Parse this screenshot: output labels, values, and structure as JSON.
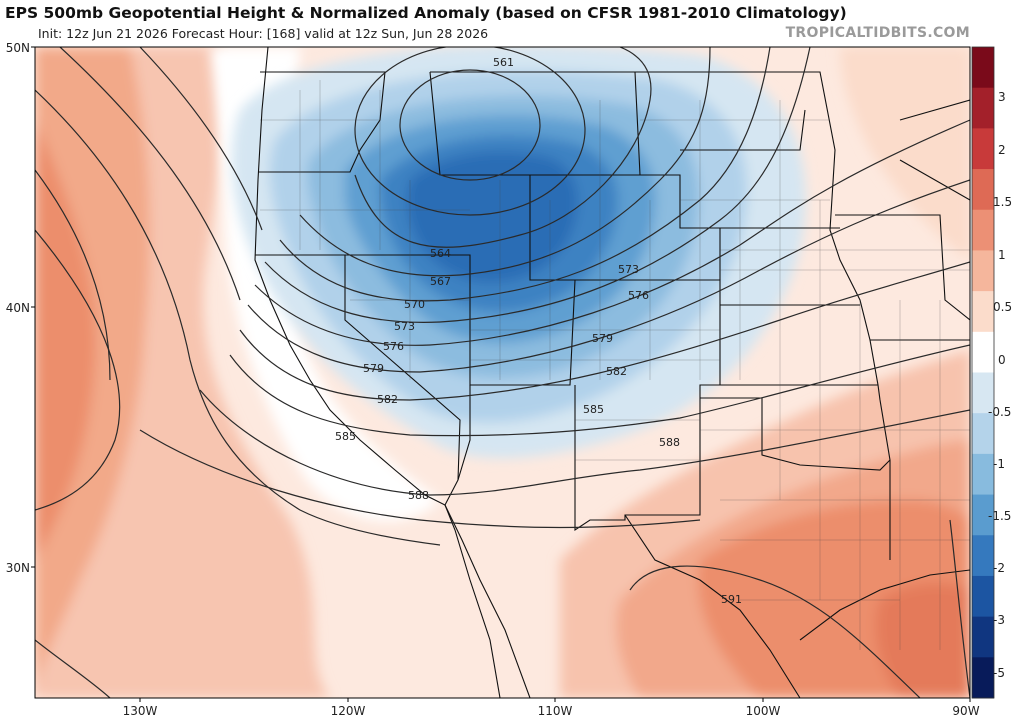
{
  "header": {
    "title": "EPS 500mb Geopotential Height & Normalized Anomaly (based on CFSR 1981-2010 Climatology)",
    "subtitle": "Init: 12z Jun 21 2026   Forecast Hour: [168]   valid at 12z Sun, Jun 28 2026",
    "brand": "TROPICALTIDBITS.COM"
  },
  "axes": {
    "lat_labels": [
      "50N",
      "40N",
      "30N"
    ],
    "lon_labels": [
      "130W",
      "120W",
      "110W",
      "100W",
      "90W"
    ]
  },
  "contours": {
    "labels": [
      "561",
      "564",
      "567",
      "570",
      "573",
      "573",
      "576",
      "576",
      "579",
      "579",
      "582",
      "582",
      "585",
      "585",
      "588",
      "588",
      "591"
    ]
  },
  "colorbar": {
    "ticks": [
      "3",
      "2",
      "1.5",
      "1",
      "0.5",
      "0",
      "-0.5",
      "-1",
      "-1.5",
      "-2",
      "-3",
      "-5"
    ],
    "colors": [
      "#7a0a1a",
      "#a3202a",
      "#c83a3a",
      "#de6a55",
      "#ec9075",
      "#f5b69c",
      "#fbdccb",
      "#ffffff",
      "#d7e7f2",
      "#b4d3ea",
      "#88bbde",
      "#5a9ccf",
      "#3579be",
      "#1c55a2",
      "#103680",
      "#081b5a"
    ]
  },
  "colors": {
    "anomaly_pos_weak": "#fbe2d6",
    "anomaly_pos_mid": "#f4b398",
    "anomaly_pos_strong": "#e88566",
    "anomaly_neg_weak": "#d5e6f2",
    "anomaly_neg_mid": "#8cbcdf",
    "anomaly_neg_strong": "#2a6db5"
  }
}
